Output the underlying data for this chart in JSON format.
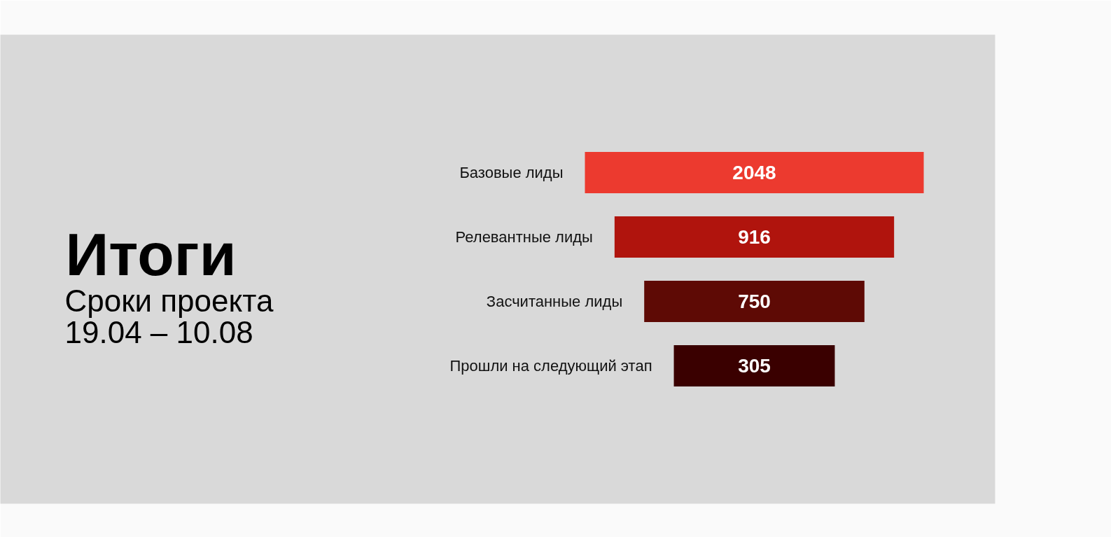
{
  "chart_data": {
    "type": "other",
    "title": "Итоги",
    "subtitle": "Сроки проекта\n19.04 – 10.08",
    "categories": [
      "Базовые лиды",
      "Релевантные лиды",
      "Засчитанные лиды",
      "Прошли на следующий этап"
    ],
    "values": [
      2048,
      916,
      750,
      305
    ],
    "colors": [
      "#ec3a2f",
      "#b0140d",
      "#5e0a05",
      "#3a0000"
    ],
    "data_labels": true
  }
}
